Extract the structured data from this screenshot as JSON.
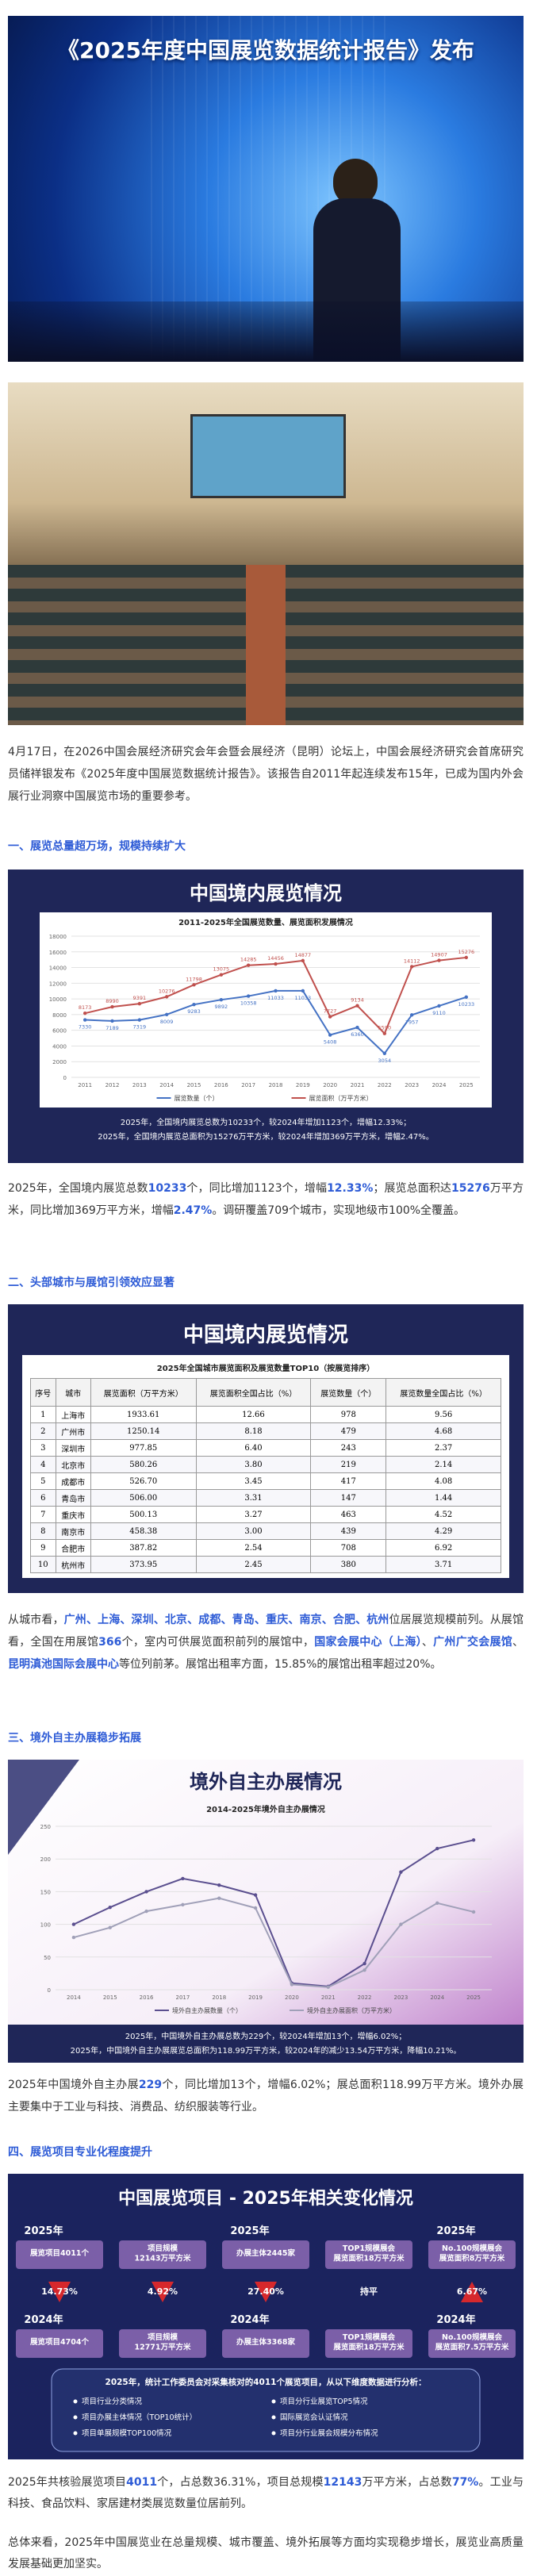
{
  "photo_title": "《2025年度中国展览数据统计报告》发布",
  "headings": [
    "一、展览总量超万场，规模持续扩大",
    "二、头部城市与展馆引领效应显著",
    "三、境外自主办展稳步拓展",
    "四、展览项目专业化程度提升"
  ],
  "paragraphs": [
    [
      {
        "text": "4月17日，在2026中国会展经济研究会年会暨会展经济（昆明）论坛上，中国会展经济研究会首席研究员储祥银发布《2025年度中国展览数据统计报告》。该报告自2011年起连续发布15年，已成为国内外会展行业洞察中国展览市场的重要参考。"
      }
    ],
    [
      {
        "text": "2025年，全国境内展览总数"
      },
      {
        "text": "10233",
        "highlight": true
      },
      {
        "text": "个，同比增加1123个，增幅"
      },
      {
        "text": "12.33%",
        "highlight": true
      },
      {
        "text": "；展览总面积达"
      },
      {
        "text": "15276",
        "highlight": true
      },
      {
        "text": "万平方米，同比增加369万平方米，增幅"
      },
      {
        "text": "2.47%",
        "highlight": true
      },
      {
        "text": "。调研覆盖709个城市，实现地级市100%全覆盖。"
      }
    ],
    [
      {
        "text": "从城市看，"
      },
      {
        "text": "广州、上海、深圳、北京、成都、青岛、重庆、南京、合肥、杭州",
        "highlight": true
      },
      {
        "text": "位居展览规模前列。从展馆看，全国在用展馆"
      },
      {
        "text": "366",
        "highlight": true
      },
      {
        "text": "个，室内可供展览面积前列的展馆中，"
      },
      {
        "text": "国家会展中心（上海）",
        "highlight": true
      },
      {
        "text": "、"
      },
      {
        "text": "广州广交会展馆",
        "highlight": true
      },
      {
        "text": "、"
      },
      {
        "text": "昆明滇池国际会展中心",
        "highlight": true
      },
      {
        "text": "等位列前茅。展馆出租率方面，15.85%的展馆出租率超过20%。"
      }
    ],
    [
      {
        "text": "2025年中国境外自主办展"
      },
      {
        "text": "229",
        "highlight": true
      },
      {
        "text": "个，同比增加13个，增幅6.02%；展总面积118.99万平方米。境外办展主要集中于工业与科技、消费品、纺织服装等行业。"
      }
    ],
    [
      {
        "text": "2025年共核验展览项目"
      },
      {
        "text": "4011",
        "highlight": true
      },
      {
        "text": "个，占总数36.31%，项目总规模"
      },
      {
        "text": "12143",
        "highlight": true
      },
      {
        "text": "万平方米，占总数"
      },
      {
        "text": "77%",
        "highlight": true
      },
      {
        "text": "。工业与科技、食品饮料、家居建材类展览数量位居前列。"
      }
    ],
    [
      {
        "text": "总体来看，2025年中国展览业在总量规模、城市覆盖、境外拓展等方面均实现稳步增长，展览业高质量发展基础更加坚实。"
      }
    ]
  ],
  "chart_data": [
    {
      "type": "line",
      "title": "中国境内展览情况",
      "subtitle": "2011-2025年全国展览数量、展览面积发展情况",
      "categories": [
        "2011",
        "2012",
        "2013",
        "2014",
        "2015",
        "2016",
        "2017",
        "2018",
        "2019",
        "2020",
        "2021",
        "2022",
        "2023",
        "2024",
        "2025"
      ],
      "series": [
        {
          "name": "展览数量（个）",
          "color": "#4472c4",
          "values": [
            7330,
            7189,
            7319,
            8009,
            9283,
            9892,
            10358,
            11033,
            11033,
            5408,
            6360,
            3054,
            7957,
            9110,
            10233
          ]
        },
        {
          "name": "展览面积（万平方米）",
          "color": "#c0504d",
          "values": [
            8173,
            8990,
            9391,
            10276,
            11798,
            13075,
            14285,
            14456,
            14877,
            7727,
            9134,
            5590,
            14112,
            14907,
            15276
          ]
        }
      ],
      "ylim": [
        0,
        18000
      ],
      "yticks": [
        0,
        2000,
        4000,
        6000,
        8000,
        10000,
        12000,
        14000,
        16000,
        18000
      ],
      "grid": true,
      "data_labels": true,
      "legend": "bottom",
      "notes": [
        "2025年，全国境内展览总数为10233个，较2024年增加1123个，增幅12.33%；",
        "2025年，全国境内展览总面积为15276万平方米，较2024年增加369万平方米，增幅2.47%。"
      ]
    },
    {
      "type": "line",
      "title": "境外自主办展情况",
      "subtitle": "2014-2025年境外自主办展情况",
      "categories": [
        "2014",
        "2015",
        "2016",
        "2017",
        "2018",
        "2019",
        "2020",
        "2021",
        "2022",
        "2023",
        "2024",
        "2025"
      ],
      "series": [
        {
          "name": "境外自主办展数量（个）",
          "color": "#5b4f8f",
          "values": [
            100,
            126,
            150,
            170,
            160,
            145,
            10,
            5,
            40,
            180,
            216,
            229
          ]
        },
        {
          "name": "境外自主办展面积（万平方米）",
          "color": "#a0a0b8",
          "values": [
            80,
            95,
            120,
            130,
            140,
            125,
            8,
            4,
            30,
            100,
            132.53,
            118.99
          ]
        }
      ],
      "ylim": [
        0,
        250
      ],
      "yticks": [
        0,
        50,
        100,
        150,
        200,
        250
      ],
      "grid": true,
      "data_labels": false,
      "legend": "bottom",
      "notes": [
        "2025年，中国境外自主办展总数为229个，较2024年增加13个，增幅6.02%；",
        "2025年，中国境外自主办展展览总面积为118.99万平方米，较2024年的减少13.54万平方米，降幅10.21%。"
      ]
    }
  ],
  "table": {
    "title": "中国境内展览情况",
    "caption": "2025年全国城市展览面积及展览数量TOP10（按展览排序）",
    "columns": [
      "序号",
      "城市",
      "展览面积（万平方米）",
      "展览面积全国占比（%）",
      "展览数量（个）",
      "展览数量全国占比（%）"
    ],
    "rows": [
      [
        "1",
        "上海市",
        "1933.61",
        "12.66",
        "978",
        "9.56"
      ],
      [
        "2",
        "广州市",
        "1250.14",
        "8.18",
        "479",
        "4.68"
      ],
      [
        "3",
        "深圳市",
        "977.85",
        "6.40",
        "243",
        "2.37"
      ],
      [
        "4",
        "北京市",
        "580.26",
        "3.80",
        "219",
        "2.14"
      ],
      [
        "5",
        "成都市",
        "526.70",
        "3.45",
        "417",
        "4.08"
      ],
      [
        "6",
        "青岛市",
        "506.00",
        "3.31",
        "147",
        "1.44"
      ],
      [
        "7",
        "重庆市",
        "500.13",
        "3.27",
        "463",
        "4.52"
      ],
      [
        "8",
        "南京市",
        "458.38",
        "3.00",
        "439",
        "4.29"
      ],
      [
        "9",
        "合肥市",
        "387.82",
        "2.54",
        "708",
        "6.92"
      ],
      [
        "10",
        "杭州市",
        "373.95",
        "2.45",
        "380",
        "3.71"
      ]
    ]
  },
  "infographic": {
    "title": "中国展览项目 - 2025年相关变化情况",
    "columns": [
      {
        "year_top": "2025年",
        "top": "展览项目4011个",
        "change": "14.73%",
        "direction": "down",
        "year_bottom": "2024年",
        "bottom": "展览项目4704个"
      },
      {
        "top": "项目规模 12143万平方米",
        "change": "4.92%",
        "direction": "down",
        "bottom": "项目规模 12771万平方米"
      },
      {
        "year_top": "2025年",
        "top": "办展主体2445家",
        "change": "27.40%",
        "direction": "down",
        "year_bottom": "2024年",
        "bottom": "办展主体3368家"
      },
      {
        "top": "TOP1规模展会 展览面积18万平方米",
        "change": "持平",
        "direction": "flat",
        "bottom": "TOP1规模展会 展览面积18万平方米"
      },
      {
        "year_top": "2025年",
        "top": "No.100规模展会 展览面积8万平方米",
        "change": "6.67%",
        "direction": "up",
        "year_bottom": "2024年",
        "bottom": "No.100规模展会 展览面积7.5万平方米"
      }
    ],
    "box_heading": "2025年，统计工作委员会对采集核对的4011个展览项目，从以下维度数据进行分析：",
    "box_items": [
      "项目行业分类情况",
      "项目分行业展览TOP5情况",
      "项目办展主体情况（TOP10统计）",
      "国际展览会认证情况",
      "项目单展规模TOP100情况",
      "项目分行业展会规模分布情况"
    ]
  }
}
